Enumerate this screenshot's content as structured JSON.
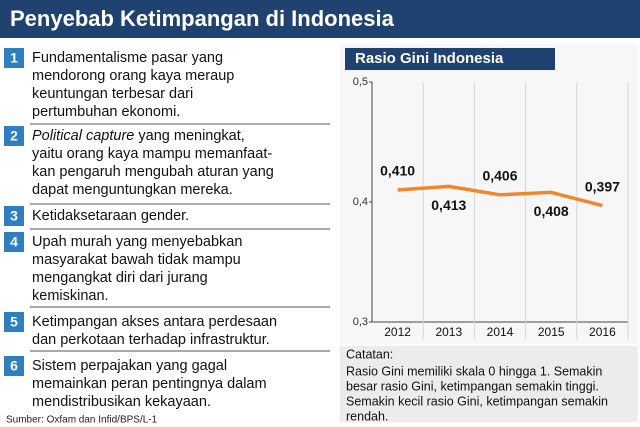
{
  "header": {
    "title": "Penyebab Ketimpangan di Indonesia"
  },
  "items": [
    {
      "number": "1",
      "lines": [
        "Fundamentalisme pasar yang",
        "mendorong orang kaya meraup",
        "keuntungan terbesar dari",
        "pertumbuhan ekonomi."
      ]
    },
    {
      "number": "2",
      "lead": "Political capture",
      "lines": [
        " yang meningkat,",
        "yaitu orang kaya mampu memanfaat-",
        "kan pengaruh mengubah aturan yang",
        "dapat menguntungkan mereka."
      ]
    },
    {
      "number": "3",
      "lines": [
        "Ketidaksetaraan gender."
      ]
    },
    {
      "number": "4",
      "lines": [
        "Upah murah yang menyebabkan",
        "masyarakat bawah tidak mampu",
        "mengangkat diri dari jurang",
        "kemiskinan."
      ]
    },
    {
      "number": "5",
      "lines": [
        "Ketimpangan akses antara perdesaan",
        "dan perkotaan terhadap infrastruktur."
      ]
    },
    {
      "number": "6",
      "lines": [
        "Sistem perpajakan yang gagal",
        "memainkan peran pentingnya dalam",
        "mendistribusikan kekayaan."
      ]
    }
  ],
  "source": "Sumber: Oxfam dan Infid/BPS/L-1",
  "chart_data": {
    "type": "line",
    "title": "Rasio Gini Indonesia",
    "categories": [
      "2012",
      "2013",
      "2014",
      "2015",
      "2016"
    ],
    "values": [
      0.41,
      0.413,
      0.406,
      0.408,
      0.397
    ],
    "value_labels": [
      "0,410",
      "0,413",
      "0,406",
      "0,408",
      "0,397"
    ],
    "color": "#f0872a",
    "ylim": [
      0.3,
      0.5
    ],
    "yticks": [
      {
        "value": 0.3,
        "label": "0,3"
      },
      {
        "value": 0.4,
        "label": "0,4"
      },
      {
        "value": 0.5,
        "label": "0,5"
      }
    ]
  },
  "note": {
    "heading": "Catatan:",
    "lines": [
      "Rasio Gini memiliki skala 0 hingga 1. Semakin",
      "besar rasio Gini, ketimpangan semakin tinggi.",
      "Semakin kecil rasio Gini, ketimpangan semakin",
      "rendah."
    ]
  }
}
